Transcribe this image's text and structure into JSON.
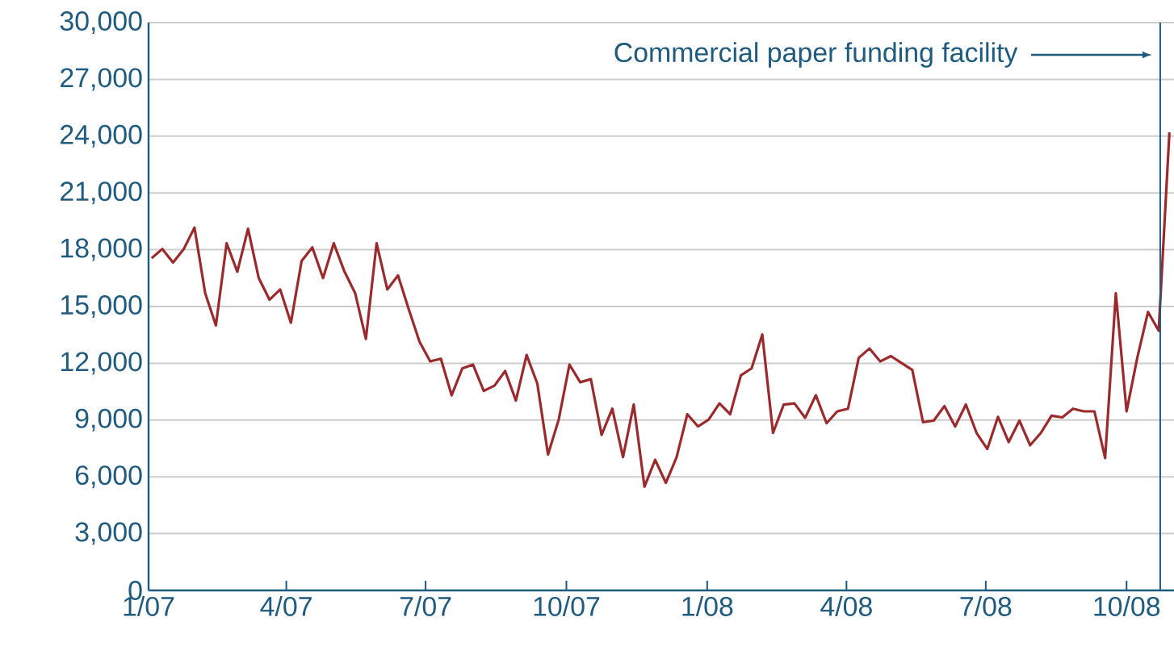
{
  "chart_data": {
    "type": "line",
    "x": [
      "2007-01-03",
      "2007-01-10",
      "2007-01-17",
      "2007-01-24",
      "2007-01-31",
      "2007-02-07",
      "2007-02-14",
      "2007-02-21",
      "2007-02-28",
      "2007-03-07",
      "2007-03-14",
      "2007-03-21",
      "2007-03-28",
      "2007-04-04",
      "2007-04-11",
      "2007-04-18",
      "2007-04-25",
      "2007-05-02",
      "2007-05-09",
      "2007-05-16",
      "2007-05-23",
      "2007-05-30",
      "2007-06-06",
      "2007-06-13",
      "2007-06-20",
      "2007-06-27",
      "2007-07-04",
      "2007-07-11",
      "2007-07-18",
      "2007-07-25",
      "2007-08-01",
      "2007-08-08",
      "2007-08-15",
      "2007-08-22",
      "2007-08-29",
      "2007-09-05",
      "2007-09-12",
      "2007-09-19",
      "2007-09-26",
      "2007-10-03",
      "2007-10-10",
      "2007-10-17",
      "2007-10-24",
      "2007-10-31",
      "2007-11-07",
      "2007-11-14",
      "2007-11-21",
      "2007-11-28",
      "2007-12-05",
      "2007-12-12",
      "2007-12-19",
      "2007-12-26",
      "2008-01-02",
      "2008-01-09",
      "2008-01-16",
      "2008-01-23",
      "2008-01-30",
      "2008-02-06",
      "2008-02-13",
      "2008-02-20",
      "2008-02-27",
      "2008-03-05",
      "2008-03-12",
      "2008-03-19",
      "2008-03-26",
      "2008-04-02",
      "2008-04-09",
      "2008-04-16",
      "2008-04-23",
      "2008-04-30",
      "2008-05-07",
      "2008-05-14",
      "2008-05-21",
      "2008-05-28",
      "2008-06-04",
      "2008-06-11",
      "2008-06-18",
      "2008-06-25",
      "2008-07-02",
      "2008-07-09",
      "2008-07-16",
      "2008-07-23",
      "2008-07-30",
      "2008-08-06",
      "2008-08-13",
      "2008-08-20",
      "2008-08-27",
      "2008-09-03",
      "2008-09-10",
      "2008-09-17",
      "2008-09-24",
      "2008-10-01",
      "2008-10-08",
      "2008-10-15",
      "2008-10-22",
      "2008-10-29"
    ],
    "series": [
      {
        "color": "#9b2a2d",
        "values": [
          17550,
          18040,
          17320,
          18040,
          19170,
          15700,
          14000,
          18340,
          16840,
          19110,
          16500,
          15360,
          15900,
          14140,
          17410,
          18120,
          16500,
          18340,
          16840,
          15700,
          13290,
          18340,
          15900,
          16640,
          14850,
          13150,
          12100,
          12240,
          10310,
          11730,
          11930,
          10540,
          10820,
          11590,
          10030,
          12440,
          10930,
          7180,
          9030,
          11930,
          11000,
          11160,
          8220,
          9600,
          7040,
          9820,
          5480,
          6900,
          5680,
          7040,
          9310,
          8660,
          9030,
          9880,
          9310,
          11360,
          11730,
          13520,
          8320,
          9820,
          9880,
          9120,
          10310,
          8830,
          9460,
          9600,
          12290,
          12780,
          12100,
          12380,
          12010,
          11650,
          8890,
          8970,
          9740,
          8660,
          9820,
          8320,
          7470,
          9170,
          7840,
          8970,
          7670,
          8320,
          9230,
          9140,
          9600,
          9460,
          9460,
          6990,
          15700,
          9460,
          12290,
          14710,
          13720,
          24200
        ]
      }
    ],
    "xlim": [
      "2007-01-01",
      "2008-11-01"
    ],
    "xticks": [
      {
        "value": "2007-01-01",
        "label": "1/07"
      },
      {
        "value": "2007-04-01",
        "label": "4/07"
      },
      {
        "value": "2007-07-01",
        "label": "7/07"
      },
      {
        "value": "2007-10-01",
        "label": "10/07"
      },
      {
        "value": "2008-01-01",
        "label": "1/08"
      },
      {
        "value": "2008-04-01",
        "label": "4/08"
      },
      {
        "value": "2008-07-01",
        "label": "7/08"
      },
      {
        "value": "2008-10-01",
        "label": "10/08"
      }
    ],
    "ylim": [
      0,
      30000
    ],
    "yticks": [
      0,
      {
        "value": 3000,
        "label": "3,000"
      },
      {
        "value": 6000,
        "label": "6,000"
      },
      {
        "value": 9000,
        "label": "9,000"
      },
      {
        "value": 12000,
        "label": "12,000"
      },
      {
        "value": 15000,
        "label": "15,000"
      },
      {
        "value": 18000,
        "label": "18,000"
      },
      {
        "value": 21000,
        "label": "21,000"
      },
      {
        "value": 24000,
        "label": "24,000"
      },
      {
        "value": 27000,
        "label": "27,000"
      },
      {
        "value": 30000,
        "label": "30,000"
      }
    ],
    "grid": "y",
    "ref_lines": [
      {
        "axis": "x",
        "value": "2008-10-23",
        "label": "Commercial paper funding facility",
        "color": "#1f5a7f"
      }
    ]
  }
}
